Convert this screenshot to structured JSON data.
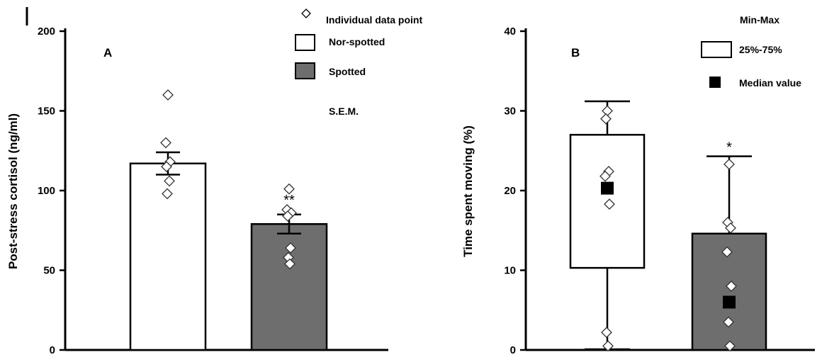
{
  "chart_data": [
    {
      "type": "bar",
      "panel_label": "A",
      "ylabel": "Post-stress cortisol (ng/ml)",
      "ylim": [
        0,
        200
      ],
      "yticks": [
        "0",
        "50",
        "100",
        "150",
        "200"
      ],
      "categories": [
        "Nor-spotted",
        "Spotted"
      ],
      "values": [
        117,
        79
      ],
      "sem": [
        7,
        6
      ],
      "significance": [
        "",
        "**"
      ],
      "individual_points": [
        [
          160,
          130,
          118,
          115,
          106,
          98
        ],
        [
          101,
          88,
          86,
          84,
          64,
          58,
          54
        ]
      ],
      "colors": {
        "Nor-spotted": "#ffffff",
        "Spotted": "#6e6e6e"
      },
      "legend": {
        "items": [
          {
            "label": "Individual data point",
            "marker": "diamond"
          },
          {
            "label": "Nor-spotted",
            "marker": "white-box"
          },
          {
            "label": "Spotted",
            "marker": "gray-box"
          },
          {
            "label": "S.E.M.",
            "marker": "none"
          }
        ],
        "position": "top-right"
      }
    },
    {
      "type": "box",
      "panel_label": "B",
      "ylabel": "Time spent moving (%)",
      "ylim": [
        0,
        40
      ],
      "yticks": [
        "0",
        "10",
        "20",
        "30",
        "40"
      ],
      "categories": [
        "Nor-spotted",
        "Spotted"
      ],
      "boxes": [
        {
          "min": 0,
          "q1": 10.3,
          "median": 20.3,
          "q3": 27,
          "max": 31.2
        },
        {
          "min": 0,
          "q1": 0,
          "median": 6,
          "q3": 14.6,
          "max": 24.3
        }
      ],
      "significance": [
        "",
        "*"
      ],
      "individual_points": [
        [
          30,
          29,
          22.4,
          21.8,
          18.3,
          2.2,
          0.5
        ],
        [
          23.3,
          16,
          15.3,
          12.3,
          8,
          3.5,
          0.5
        ]
      ],
      "colors": {
        "Nor-spotted": "#ffffff",
        "Spotted": "#6e6e6e"
      },
      "legend": {
        "items": [
          {
            "label": "Min-Max",
            "marker": "none"
          },
          {
            "label": "25%-75%",
            "marker": "white-box"
          },
          {
            "label": "Median value",
            "marker": "black-square"
          }
        ],
        "position": "top-right"
      }
    }
  ]
}
